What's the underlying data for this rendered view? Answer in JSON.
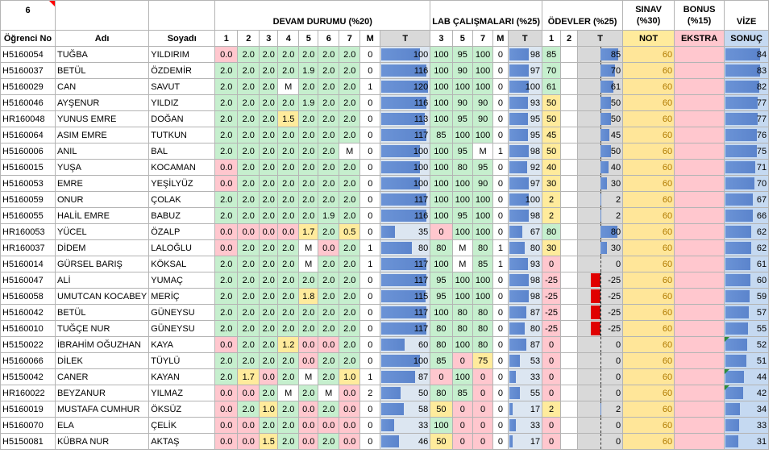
{
  "sheet": {
    "corner": "6",
    "group_headers": {
      "devam": "DEVAM DURUMU (%20)",
      "lab": "LAB ÇALIŞMALARI (%25)",
      "odev": "ÖDEVLER (%25)",
      "sinav": "SINAV (%30)",
      "bonus": "BONUS (%15)",
      "vize": "VİZE"
    },
    "col_headers": [
      "Öğrenci No",
      "Adı",
      "Soyadı",
      "1",
      "2",
      "3",
      "4",
      "5",
      "6",
      "7",
      "M",
      "T",
      "3",
      "5",
      "7",
      "M",
      "T",
      "1",
      "2",
      "T",
      "NOT",
      "EKSTRA",
      "SONUÇ"
    ],
    "students": [
      {
        "no": "H5160054",
        "ad": "TUĞBA",
        "soyad": "YILDIRIM",
        "d": [
          "0.0",
          "2.0",
          "2.0",
          "2.0",
          "2.0",
          "2.0",
          "2.0"
        ],
        "dm": "0",
        "dt": "100",
        "l": [
          "100",
          "95",
          "100"
        ],
        "lm": "0",
        "lt": "98",
        "o": [
          "85",
          ""
        ],
        "ot": "85",
        "not": "60",
        "ek": "",
        "sonuc": "84"
      },
      {
        "no": "H5160037",
        "ad": "BETÜL",
        "soyad": "ÖZDEMİR",
        "d": [
          "2.0",
          "2.0",
          "2.0",
          "2.0",
          "1.9",
          "2.0",
          "2.0"
        ],
        "dm": "0",
        "dt": "116",
        "l": [
          "100",
          "90",
          "100"
        ],
        "lm": "0",
        "lt": "97",
        "o": [
          "70",
          ""
        ],
        "ot": "70",
        "not": "60",
        "ek": "",
        "sonuc": "83"
      },
      {
        "no": "H5160029",
        "ad": "CAN",
        "soyad": "SAVUT",
        "d": [
          "2.0",
          "2.0",
          "2.0",
          "M",
          "2.0",
          "2.0",
          "2.0"
        ],
        "dm": "1",
        "dt": "120",
        "l": [
          "100",
          "100",
          "100"
        ],
        "lm": "0",
        "lt": "100",
        "o": [
          "61",
          ""
        ],
        "ot": "61",
        "not": "60",
        "ek": "",
        "sonuc": "82"
      },
      {
        "no": "H5160046",
        "ad": "AYŞENUR",
        "soyad": "YILDIZ",
        "d": [
          "2.0",
          "2.0",
          "2.0",
          "2.0",
          "1.9",
          "2.0",
          "2.0"
        ],
        "dm": "0",
        "dt": "116",
        "l": [
          "100",
          "90",
          "90"
        ],
        "lm": "0",
        "lt": "93",
        "o": [
          "50",
          ""
        ],
        "ot": "50",
        "not": "60",
        "ek": "",
        "sonuc": "77"
      },
      {
        "no": "HR160048",
        "ad": "YUNUS EMRE",
        "soyad": "DOĞAN",
        "d": [
          "2.0",
          "2.0",
          "2.0",
          "1.5",
          "2.0",
          "2.0",
          "2.0"
        ],
        "dm": "0",
        "dt": "113",
        "l": [
          "100",
          "95",
          "90"
        ],
        "lm": "0",
        "lt": "95",
        "o": [
          "50",
          ""
        ],
        "ot": "50",
        "not": "60",
        "ek": "",
        "sonuc": "77"
      },
      {
        "no": "H5160064",
        "ad": "ASIM EMRE",
        "soyad": "TUTKUN",
        "d": [
          "2.0",
          "2.0",
          "2.0",
          "2.0",
          "2.0",
          "2.0",
          "2.0"
        ],
        "dm": "0",
        "dt": "117",
        "l": [
          "85",
          "100",
          "100"
        ],
        "lm": "0",
        "lt": "95",
        "o": [
          "45",
          ""
        ],
        "ot": "45",
        "not": "60",
        "ek": "",
        "sonuc": "76"
      },
      {
        "no": "H5160006",
        "ad": "ANIL",
        "soyad": "BAL",
        "d": [
          "2.0",
          "2.0",
          "2.0",
          "2.0",
          "2.0",
          "2.0",
          "M"
        ],
        "dm": "0",
        "dt": "100",
        "l": [
          "100",
          "95",
          "M"
        ],
        "lm": "1",
        "lt": "98",
        "o": [
          "50",
          ""
        ],
        "ot": "50",
        "not": "60",
        "ek": "",
        "sonuc": "75"
      },
      {
        "no": "H5160015",
        "ad": "YUŞA",
        "soyad": "KOCAMAN",
        "d": [
          "0.0",
          "2.0",
          "2.0",
          "2.0",
          "2.0",
          "2.0",
          "2.0"
        ],
        "dm": "0",
        "dt": "100",
        "l": [
          "100",
          "80",
          "95"
        ],
        "lm": "0",
        "lt": "92",
        "o": [
          "40",
          ""
        ],
        "ot": "40",
        "not": "60",
        "ek": "",
        "sonuc": "71"
      },
      {
        "no": "H5160053",
        "ad": "EMRE",
        "soyad": "YEŞİLYÜZ",
        "d": [
          "0.0",
          "2.0",
          "2.0",
          "2.0",
          "2.0",
          "2.0",
          "2.0"
        ],
        "dm": "0",
        "dt": "100",
        "l": [
          "100",
          "100",
          "90"
        ],
        "lm": "0",
        "lt": "97",
        "o": [
          "30",
          ""
        ],
        "ot": "30",
        "not": "60",
        "ek": "",
        "sonuc": "70"
      },
      {
        "no": "H5160059",
        "ad": "ONUR",
        "soyad": "ÇOLAK",
        "d": [
          "2.0",
          "2.0",
          "2.0",
          "2.0",
          "2.0",
          "2.0",
          "2.0"
        ],
        "dm": "0",
        "dt": "117",
        "l": [
          "100",
          "100",
          "100"
        ],
        "lm": "0",
        "lt": "100",
        "o": [
          "2",
          ""
        ],
        "ot": "2",
        "not": "60",
        "ek": "",
        "sonuc": "67"
      },
      {
        "no": "H5160055",
        "ad": "HALİL EMRE",
        "soyad": "BABUZ",
        "d": [
          "2.0",
          "2.0",
          "2.0",
          "2.0",
          "2.0",
          "1.9",
          "2.0"
        ],
        "dm": "0",
        "dt": "116",
        "l": [
          "100",
          "95",
          "100"
        ],
        "lm": "0",
        "lt": "98",
        "o": [
          "2",
          ""
        ],
        "ot": "2",
        "not": "60",
        "ek": "",
        "sonuc": "66"
      },
      {
        "no": "HR160053",
        "ad": "YÜCEL",
        "soyad": "ÖZALP",
        "d": [
          "0.0",
          "0.0",
          "0.0",
          "0.0",
          "1.7",
          "2.0",
          "0.5"
        ],
        "dm": "0",
        "dt": "35",
        "l": [
          "0",
          "100",
          "100"
        ],
        "lm": "0",
        "lt": "67",
        "o": [
          "80",
          ""
        ],
        "ot": "80",
        "not": "60",
        "ek": "",
        "sonuc": "62"
      },
      {
        "no": "HR160037",
        "ad": "DİDEM",
        "soyad": "LALOĞLU",
        "d": [
          "0.0",
          "2.0",
          "2.0",
          "2.0",
          "M",
          "0.0",
          "2.0"
        ],
        "dm": "1",
        "dt": "80",
        "l": [
          "80",
          "M",
          "80"
        ],
        "lm": "1",
        "lt": "80",
        "o": [
          "30",
          ""
        ],
        "ot": "30",
        "not": "60",
        "ek": "",
        "sonuc": "62"
      },
      {
        "no": "H5160014",
        "ad": "GÜRSEL BARIŞ",
        "soyad": "KÖKSAL",
        "d": [
          "2.0",
          "2.0",
          "2.0",
          "2.0",
          "M",
          "2.0",
          "2.0"
        ],
        "dm": "1",
        "dt": "117",
        "l": [
          "100",
          "M",
          "85"
        ],
        "lm": "1",
        "lt": "93",
        "o": [
          "0",
          ""
        ],
        "ot": "0",
        "not": "60",
        "ek": "",
        "sonuc": "61"
      },
      {
        "no": "H5160047",
        "ad": "ALİ",
        "soyad": "YUMAÇ",
        "d": [
          "2.0",
          "2.0",
          "2.0",
          "2.0",
          "2.0",
          "2.0",
          "2.0"
        ],
        "dm": "0",
        "dt": "117",
        "l": [
          "95",
          "100",
          "100"
        ],
        "lm": "0",
        "lt": "98",
        "o": [
          "-25",
          ""
        ],
        "ot": "-25",
        "not": "60",
        "ek": "",
        "sonuc": "60"
      },
      {
        "no": "H5160058",
        "ad": "UMUTCAN KOCABEY",
        "soyad": "MERİÇ",
        "d": [
          "2.0",
          "2.0",
          "2.0",
          "2.0",
          "1.8",
          "2.0",
          "2.0"
        ],
        "dm": "0",
        "dt": "115",
        "l": [
          "95",
          "100",
          "100"
        ],
        "lm": "0",
        "lt": "98",
        "o": [
          "-25",
          ""
        ],
        "ot": "-25",
        "not": "60",
        "ek": "",
        "sonuc": "59"
      },
      {
        "no": "H5160042",
        "ad": "BETÜL",
        "soyad": "GÜNEYSU",
        "d": [
          "2.0",
          "2.0",
          "2.0",
          "2.0",
          "2.0",
          "2.0",
          "2.0"
        ],
        "dm": "0",
        "dt": "117",
        "l": [
          "100",
          "80",
          "80"
        ],
        "lm": "0",
        "lt": "87",
        "o": [
          "-25",
          ""
        ],
        "ot": "-25",
        "not": "60",
        "ek": "",
        "sonuc": "57"
      },
      {
        "no": "H5160010",
        "ad": "TUĞÇE NUR",
        "soyad": "GÜNEYSU",
        "d": [
          "2.0",
          "2.0",
          "2.0",
          "2.0",
          "2.0",
          "2.0",
          "2.0"
        ],
        "dm": "0",
        "dt": "117",
        "l": [
          "80",
          "80",
          "80"
        ],
        "lm": "0",
        "lt": "80",
        "o": [
          "-25",
          ""
        ],
        "ot": "-25",
        "not": "60",
        "ek": "",
        "sonuc": "55"
      },
      {
        "no": "H5150022",
        "ad": "İBRAHİM OĞUZHAN",
        "soyad": "KAYA",
        "d": [
          "0.0",
          "2.0",
          "2.0",
          "1.2",
          "0.0",
          "0.0",
          "2.0"
        ],
        "dm": "0",
        "dt": "60",
        "l": [
          "80",
          "100",
          "80"
        ],
        "lm": "0",
        "lt": "87",
        "o": [
          "0",
          ""
        ],
        "ot": "0",
        "not": "60",
        "ek": "",
        "sonuc": "52"
      },
      {
        "no": "H5160066",
        "ad": "DİLEK",
        "soyad": "TÜYLÜ",
        "d": [
          "2.0",
          "2.0",
          "2.0",
          "2.0",
          "0.0",
          "2.0",
          "2.0"
        ],
        "dm": "0",
        "dt": "100",
        "l": [
          "85",
          "0",
          "75"
        ],
        "lm": "0",
        "lt": "53",
        "o": [
          "0",
          ""
        ],
        "ot": "0",
        "not": "60",
        "ek": "",
        "sonuc": "51"
      },
      {
        "no": "H5150042",
        "ad": "CANER",
        "soyad": "KAYAN",
        "d": [
          "2.0",
          "1.7",
          "0.0",
          "2.0",
          "M",
          "2.0",
          "1.0"
        ],
        "dm": "1",
        "dt": "87",
        "l": [
          "0",
          "100",
          "0"
        ],
        "lm": "0",
        "lt": "33",
        "o": [
          "0",
          ""
        ],
        "ot": "0",
        "not": "60",
        "ek": "",
        "sonuc": "44"
      },
      {
        "no": "HR160022",
        "ad": "BEYZANUR",
        "soyad": "YILMAZ",
        "d": [
          "0.0",
          "0.0",
          "2.0",
          "M",
          "2.0",
          "M",
          "0.0"
        ],
        "dm": "2",
        "dt": "50",
        "l": [
          "80",
          "85",
          "0"
        ],
        "lm": "0",
        "lt": "55",
        "o": [
          "0",
          ""
        ],
        "ot": "0",
        "not": "60",
        "ek": "",
        "sonuc": "42"
      },
      {
        "no": "H5160019",
        "ad": "MUSTAFA CUMHUR",
        "soyad": "ÖKSÜZ",
        "d": [
          "0.0",
          "2.0",
          "1.0",
          "2.0",
          "0.0",
          "2.0",
          "0.0"
        ],
        "dm": "0",
        "dt": "58",
        "l": [
          "50",
          "0",
          "0"
        ],
        "lm": "0",
        "lt": "17",
        "o": [
          "2",
          ""
        ],
        "ot": "2",
        "not": "60",
        "ek": "",
        "sonuc": "34"
      },
      {
        "no": "H5160070",
        "ad": "ELA",
        "soyad": "ÇELİK",
        "d": [
          "0.0",
          "0.0",
          "2.0",
          "2.0",
          "0.0",
          "0.0",
          "0.0"
        ],
        "dm": "0",
        "dt": "33",
        "l": [
          "100",
          "0",
          "0"
        ],
        "lm": "0",
        "lt": "33",
        "o": [
          "0",
          ""
        ],
        "ot": "0",
        "not": "60",
        "ek": "",
        "sonuc": "33"
      },
      {
        "no": "H5150081",
        "ad": "KÜBRA NUR",
        "soyad": "AKTAŞ",
        "d": [
          "0.0",
          "0.0",
          "1.5",
          "2.0",
          "0.0",
          "2.0",
          "0.0"
        ],
        "dm": "0",
        "dt": "46",
        "l": [
          "50",
          "0",
          "0"
        ],
        "lm": "0",
        "lt": "17",
        "o": [
          "0",
          ""
        ],
        "ot": "0",
        "not": "60",
        "ek": "",
        "sonuc": "31"
      }
    ],
    "colors": {
      "good": "#c6efce",
      "bad": "#ffc7ce",
      "mid": "#ffeb9c",
      "databar": "#5b84cc",
      "negbar": "#e00000"
    }
  }
}
